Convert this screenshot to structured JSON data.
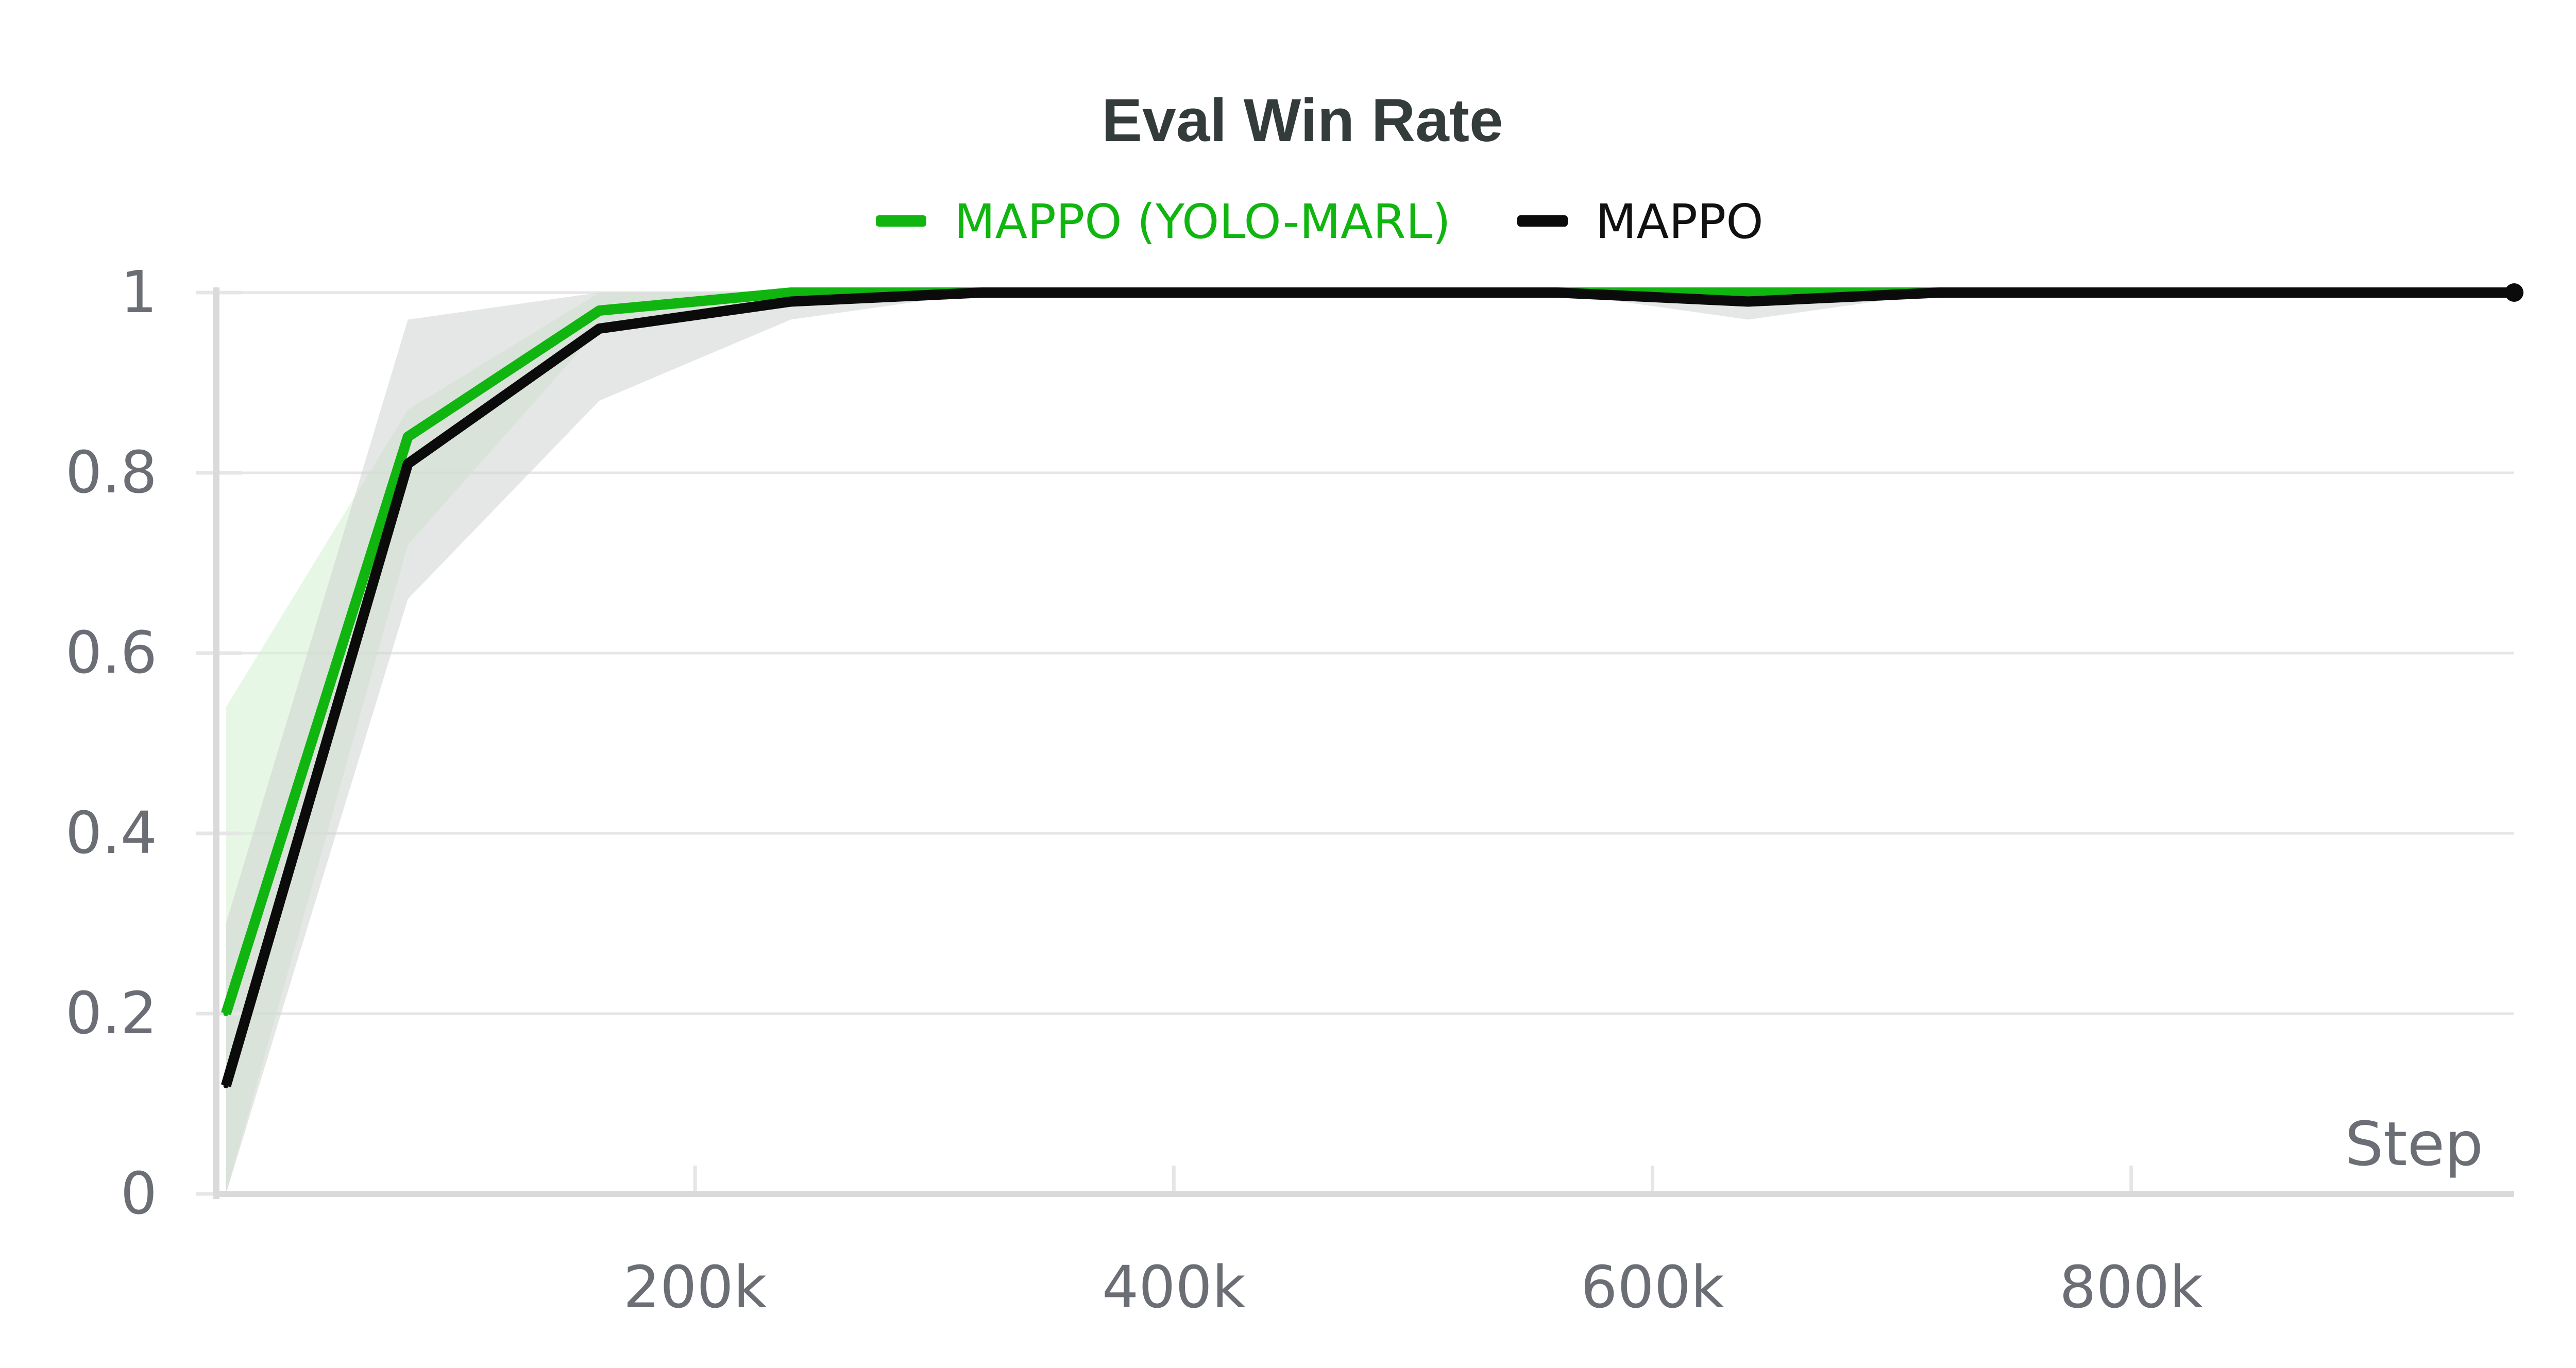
{
  "chart_data": {
    "type": "line",
    "title": "Eval Win Rate",
    "xlabel": "Step",
    "ylabel": "",
    "xlim": [
      0,
      960000
    ],
    "ylim": [
      0,
      1
    ],
    "x_ticks": [
      200000,
      400000,
      600000,
      800000
    ],
    "x_tick_labels": [
      "200k",
      "400k",
      "600k",
      "800k"
    ],
    "y_ticks": [
      0,
      0.2,
      0.4,
      0.6,
      0.8,
      1
    ],
    "y_tick_labels": [
      "0",
      "0.2",
      "0.4",
      "0.6",
      "0.8",
      "1"
    ],
    "grid": true,
    "legend_position": "top-center",
    "series": [
      {
        "name": "MAPPO (YOLO-MARL)",
        "color": "#10b510",
        "band_color": "#d7f2d4",
        "x": [
          4000,
          80000,
          160000,
          240000,
          320000,
          400000,
          480000,
          560000,
          640000,
          720000,
          800000,
          880000,
          960000
        ],
        "values": [
          0.2,
          0.84,
          0.98,
          1.0,
          1.0,
          1.0,
          1.0,
          1.0,
          1.0,
          1.0,
          1.0,
          1.0,
          1.0
        ],
        "band_lower": [
          0.0,
          0.72,
          0.96,
          0.99,
          1.0,
          1.0,
          1.0,
          1.0,
          0.99,
          1.0,
          1.0,
          1.0,
          1.0
        ],
        "band_upper": [
          0.54,
          0.87,
          1.0,
          1.0,
          1.0,
          1.0,
          1.0,
          1.0,
          1.0,
          1.0,
          1.0,
          1.0,
          1.0
        ]
      },
      {
        "name": "MAPPO",
        "color": "#0b0b0b",
        "band_color": "#cfd3d1",
        "x": [
          4000,
          80000,
          160000,
          240000,
          320000,
          400000,
          480000,
          560000,
          640000,
          720000,
          800000,
          880000,
          960000
        ],
        "values": [
          0.12,
          0.81,
          0.96,
          0.99,
          1.0,
          1.0,
          1.0,
          1.0,
          0.99,
          1.0,
          1.0,
          1.0,
          1.0
        ],
        "band_lower": [
          0.0,
          0.66,
          0.88,
          0.97,
          1.0,
          1.0,
          1.0,
          1.0,
          0.97,
          1.0,
          1.0,
          1.0,
          1.0
        ],
        "band_upper": [
          0.3,
          0.97,
          1.0,
          1.0,
          1.0,
          1.0,
          1.0,
          1.0,
          1.0,
          1.0,
          1.0,
          1.0,
          1.0
        ]
      }
    ]
  },
  "colors": {
    "grid": "#e6e6e6",
    "axis": "#dadada",
    "tick_text": "#6b6e74",
    "title": "#333b3b"
  }
}
